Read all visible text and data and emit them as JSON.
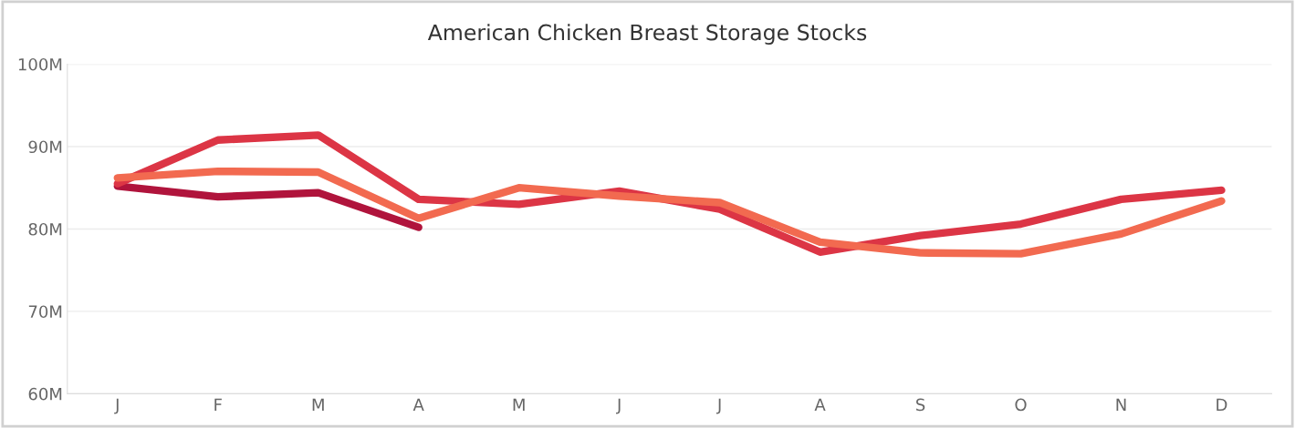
{
  "chart_data": {
    "type": "line",
    "title": "American Chicken Breast Storage Stocks",
    "categories": [
      "J",
      "F",
      "M",
      "A",
      "M",
      "J",
      "J",
      "A",
      "S",
      "O",
      "N",
      "D"
    ],
    "series": [
      {
        "color": "#b0143c",
        "values": [
          85.2,
          83.9,
          84.4,
          80.2,
          null,
          null,
          null,
          null,
          null,
          null,
          null,
          null
        ]
      },
      {
        "color": "#dc3545",
        "values": [
          85.5,
          90.8,
          91.4,
          83.6,
          83.0,
          84.6,
          82.4,
          77.2,
          79.2,
          80.6,
          83.6,
          84.7
        ]
      },
      {
        "color": "#f26a50",
        "values": [
          86.2,
          87.0,
          86.9,
          81.3,
          85.0,
          84.0,
          83.2,
          78.4,
          77.1,
          77.0,
          79.4,
          83.4
        ]
      }
    ],
    "ylim": [
      60,
      100
    ],
    "yticks": [
      {
        "value": 60,
        "label": "60M"
      },
      {
        "value": 70,
        "label": "70M"
      },
      {
        "value": 80,
        "label": "80M"
      },
      {
        "value": 90,
        "label": "90M"
      },
      {
        "value": 100,
        "label": "100M"
      }
    ],
    "grid": "y",
    "marker": "none",
    "line_style": "solid",
    "legend": false
  }
}
